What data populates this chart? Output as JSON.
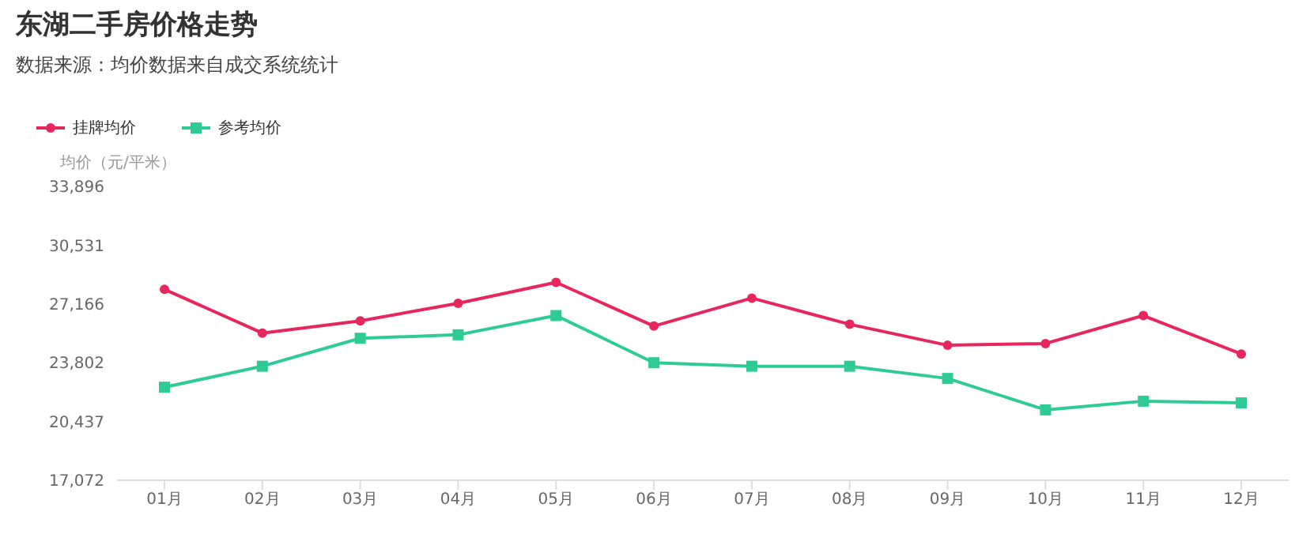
{
  "chart_data": {
    "type": "line",
    "title": "东湖二手房价格走势",
    "subtitle": "数据来源：均价数据来自成交系统统计",
    "ylabel": "均价（元/平米）",
    "categories": [
      "01月",
      "02月",
      "03月",
      "04月",
      "05月",
      "06月",
      "07月",
      "08月",
      "09月",
      "10月",
      "11月",
      "12月"
    ],
    "series": [
      {
        "name": "挂牌均价",
        "color": "#e8265e",
        "marker": "circle",
        "values": [
          28000,
          25500,
          26200,
          27200,
          28400,
          25900,
          27500,
          26000,
          24800,
          24900,
          26500,
          24300
        ]
      },
      {
        "name": "参考均价",
        "color": "#2ecc94",
        "marker": "square",
        "values": [
          22400,
          23600,
          25200,
          25400,
          26500,
          23800,
          23600,
          23600,
          22900,
          21100,
          21600,
          21500
        ]
      }
    ],
    "ylim": [
      17072,
      33896
    ],
    "yticks": [
      {
        "value": 17072,
        "label": "17,072"
      },
      {
        "value": 20437,
        "label": "20,437"
      },
      {
        "value": 23802,
        "label": "23,802"
      },
      {
        "value": 27166,
        "label": "27,166"
      },
      {
        "value": 30531,
        "label": "30,531"
      },
      {
        "value": 33896,
        "label": "33,896"
      }
    ],
    "grid": false,
    "legend": "top left",
    "line_style": "solid"
  }
}
